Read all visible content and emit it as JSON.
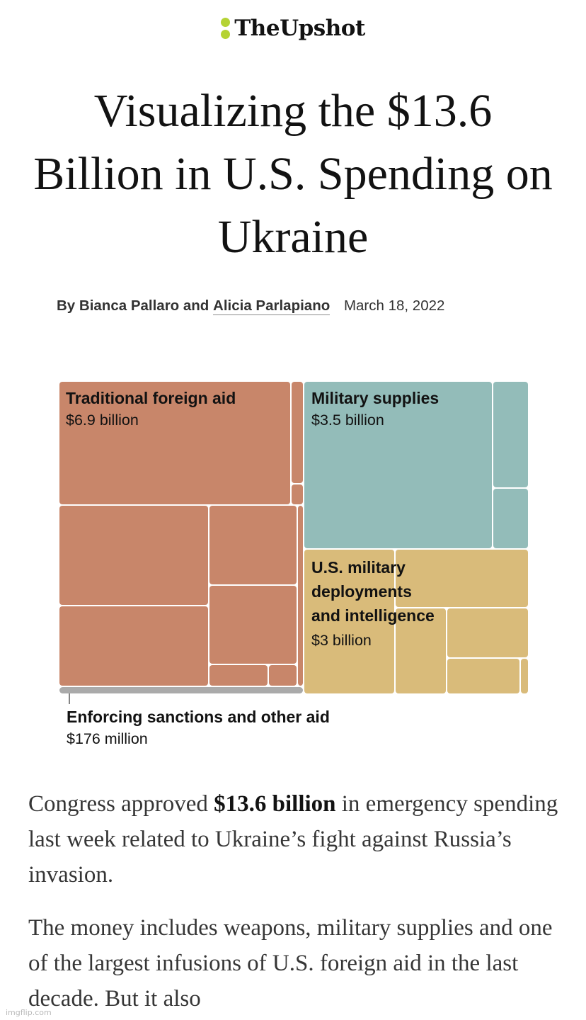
{
  "masthead": {
    "brand": "TheUpshot",
    "accent": "#b5d334"
  },
  "article": {
    "headline": "Visualizing the $13.6 Billion in U.S. Spending on Ukraine",
    "byline_prefix": "By Bianca Pallaro and",
    "byline_link": "Alicia Parlapiano",
    "date": "March 18, 2022",
    "p1_before": "Congress approved",
    "p1_bold": "$13.6 billion",
    "p1_after": "in emergency spending last week related to Ukraine’s fight against Russia’s invasion.",
    "p2": "The money includes weapons, military supplies and one of the largest infusions of U.S. foreign aid in the last decade. But it also"
  },
  "chart_data": {
    "type": "treemap",
    "title": "",
    "total": "$13.6 billion",
    "groups": [
      {
        "key": "aid",
        "name": "Traditional foreign aid",
        "value_label": "$6.9 billion",
        "value": 6.9,
        "color": "#c8866a"
      },
      {
        "key": "supplies",
        "name": "Military supplies",
        "value_label": "$3.5 billion",
        "value": 3.5,
        "color": "#93bcb9"
      },
      {
        "key": "deploy",
        "name": "U.S. military deployments and intelligence",
        "name_lines": [
          "U.S. military",
          "deployments",
          "and intelligence"
        ],
        "value_label": "$3 billion",
        "value": 3.0,
        "color": "#d9bb7a"
      },
      {
        "key": "sanctions",
        "name": "Enforcing sanctions and other aid",
        "value_label": "$176 million",
        "value": 0.176,
        "color": "#aaaaaa"
      }
    ]
  },
  "watermark": "imgflip.com"
}
